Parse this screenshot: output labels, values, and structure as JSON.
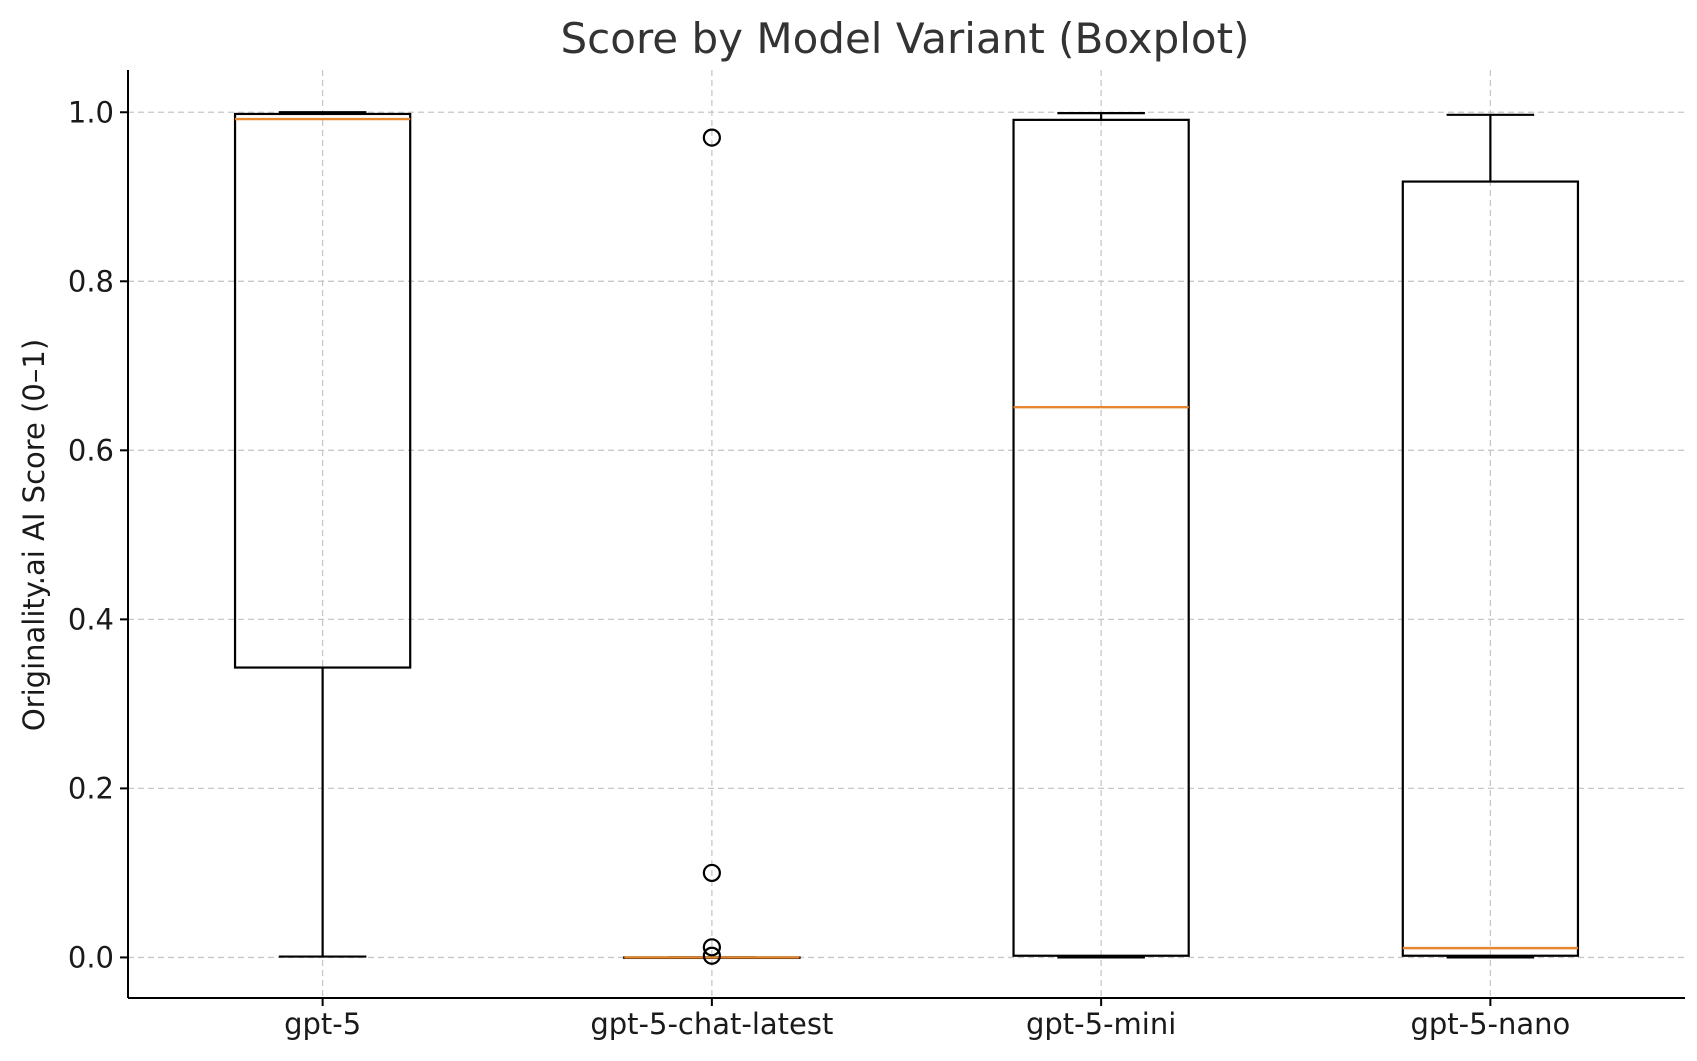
{
  "chart_data": {
    "type": "boxplot",
    "title": "Score by Model Variant (Boxplot)",
    "xlabel": "",
    "ylabel": "Originality.ai AI Score (0–1)",
    "ylim": [
      -0.048,
      1.05
    ],
    "yticks": [
      0.0,
      0.2,
      0.4,
      0.6,
      0.8,
      1.0
    ],
    "ytick_labels": [
      "0.0",
      "0.2",
      "0.4",
      "0.6",
      "0.8",
      "1.0"
    ],
    "grid": true,
    "categories": [
      "gpt-5",
      "gpt-5-chat-latest",
      "gpt-5-mini",
      "gpt-5-nano"
    ],
    "boxes": [
      {
        "label": "gpt-5",
        "whisker_low": 0.001,
        "q1": 0.343,
        "median": 0.992,
        "q3": 0.998,
        "whisker_high": 1.0,
        "outliers": []
      },
      {
        "label": "gpt-5-chat-latest",
        "whisker_low": 0.0,
        "q1": 0.0,
        "median": 0.0,
        "q3": 0.0,
        "whisker_high": 0.0,
        "outliers": [
          0.97,
          0.1,
          0.012,
          0.002
        ]
      },
      {
        "label": "gpt-5-mini",
        "whisker_low": 0.0,
        "q1": 0.002,
        "median": 0.651,
        "q3": 0.991,
        "whisker_high": 0.999,
        "outliers": []
      },
      {
        "label": "gpt-5-nano",
        "whisker_low": 0.0,
        "q1": 0.002,
        "median": 0.011,
        "q3": 0.918,
        "whisker_high": 0.997,
        "outliers": []
      }
    ],
    "colors": {
      "box": "#000000",
      "median": "#e6862f",
      "grid": "#c8c8c8",
      "text": "#333333"
    }
  }
}
